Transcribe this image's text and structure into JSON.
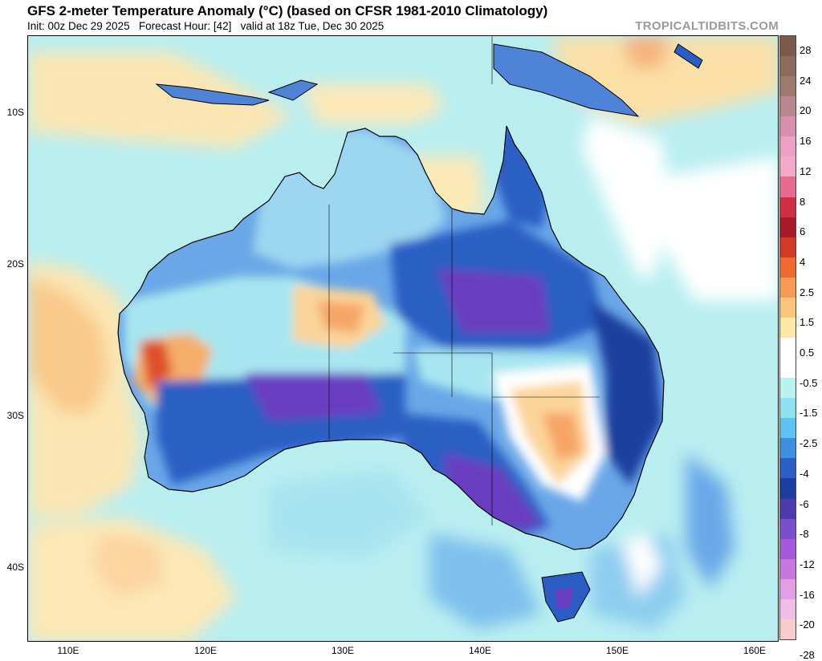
{
  "header": {
    "title": "GFS 2-meter Temperature Anomaly (°C) (based on CFSR 1981-2010 Climatology)",
    "subtitle": "Init: 00z Dec 29 2025   Forecast Hour: [42]   valid at 18z Tue, Dec 30 2025",
    "watermark": "TROPICALTIDBITS.COM"
  },
  "map": {
    "lat_labels": [
      "10S",
      "20S",
      "30S",
      "40S"
    ],
    "lon_labels": [
      "110E",
      "120E",
      "130E",
      "140E",
      "150E",
      "160E"
    ]
  },
  "colorbar": {
    "labels": [
      "28",
      "24",
      "20",
      "16",
      "12",
      "8",
      "6",
      "4",
      "2.5",
      "1.5",
      "0.5",
      "-0.5",
      "-1.5",
      "-2.5",
      "-4",
      "-6",
      "-8",
      "-12",
      "-16",
      "-20",
      "-28"
    ],
    "colors": [
      "#7a5a4a",
      "#8c6a5c",
      "#9c7b6e",
      "#b8868e",
      "#d88fae",
      "#ed9fc4",
      "#f3aac9",
      "#e86a90",
      "#cf2f45",
      "#a81c2a",
      "#d23a24",
      "#ee6a32",
      "#f89a55",
      "#fcc57c",
      "#fde8a6",
      "#ffffff",
      "#ffffff",
      "#b8f2ee",
      "#8ee2ef",
      "#5fc3ef",
      "#3f8fe0",
      "#2a5fc4",
      "#1b3f9e",
      "#4e3cae",
      "#7b4fcc",
      "#a45ad9",
      "#c877dc",
      "#e49ee4",
      "#f0bde6",
      "#f6cccd"
    ]
  }
}
